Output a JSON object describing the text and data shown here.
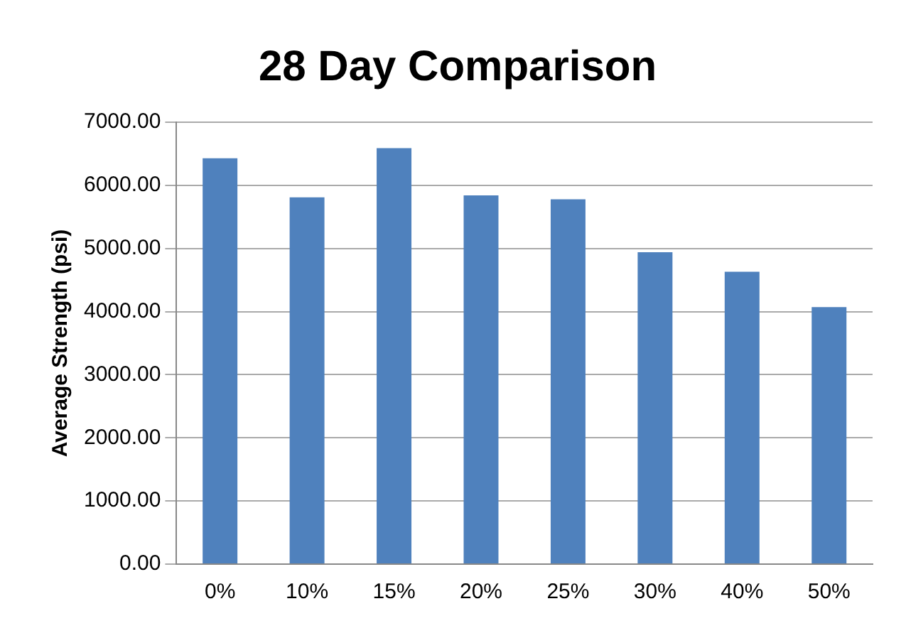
{
  "chart_data": {
    "type": "bar",
    "title": "28 Day Comparison",
    "ylabel": "Average Strength (psi)",
    "categories": [
      "0%",
      "10%",
      "15%",
      "20%",
      "25%",
      "30%",
      "40%",
      "50%"
    ],
    "values": [
      6430,
      5810,
      6590,
      5840,
      5780,
      4940,
      4630,
      4070
    ],
    "color": "#4f81bd",
    "ylim": [
      0,
      7000
    ],
    "yticks": [
      {
        "value": 0,
        "label": "0.00"
      },
      {
        "value": 1000,
        "label": "1000.00"
      },
      {
        "value": 2000,
        "label": "2000.00"
      },
      {
        "value": 3000,
        "label": "3000.00"
      },
      {
        "value": 4000,
        "label": "4000.00"
      },
      {
        "value": 5000,
        "label": "5000.00"
      },
      {
        "value": 6000,
        "label": "6000.00"
      },
      {
        "value": 7000,
        "label": "7000.00"
      }
    ],
    "grid": "y"
  }
}
